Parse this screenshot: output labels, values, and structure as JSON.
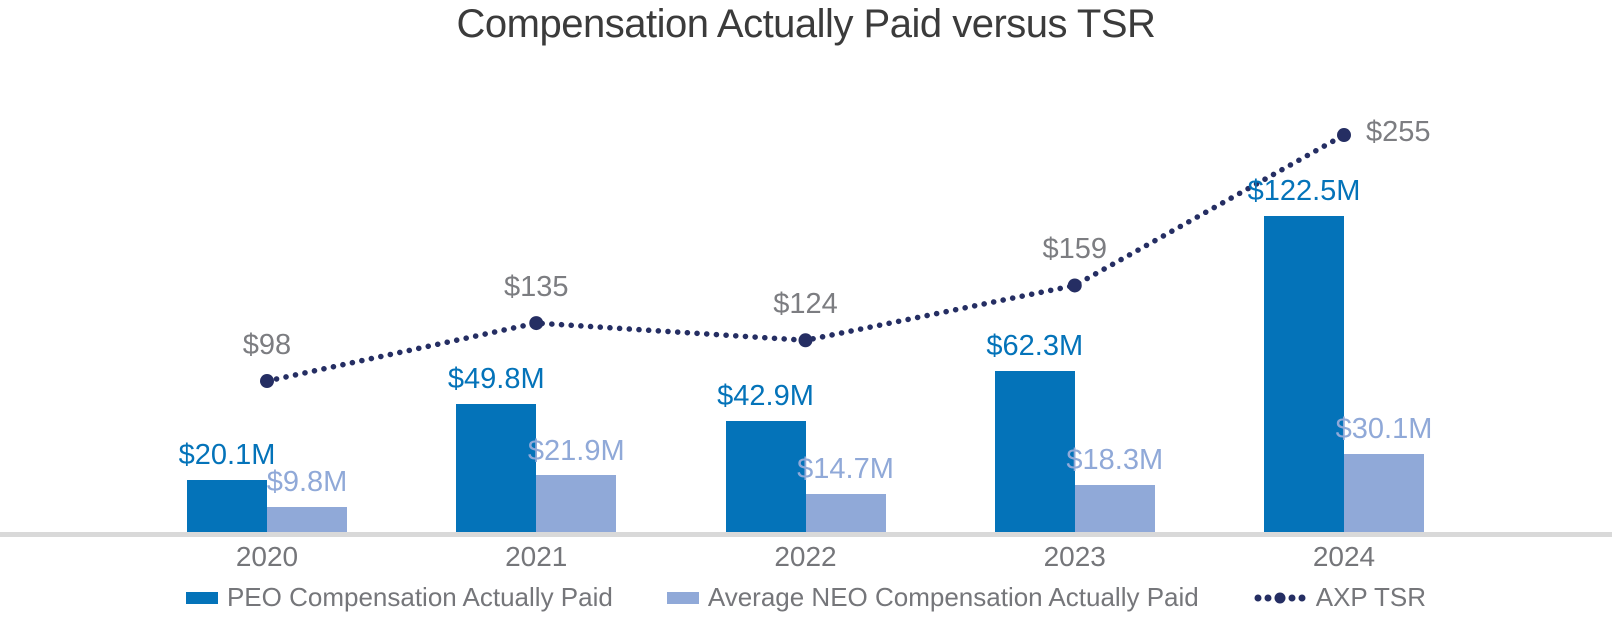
{
  "title": "Compensation Actually Paid versus TSR",
  "chart_data": {
    "type": "bar",
    "subtype": "grouped bars with secondary dotted line series",
    "categories": [
      "2020",
      "2021",
      "2022",
      "2023",
      "2024"
    ],
    "series": [
      {
        "name": "PEO Compensation Actually Paid",
        "type": "bar",
        "color": "#0473b9",
        "values": [
          20.1,
          49.8,
          42.9,
          62.3,
          122.5
        ],
        "labels": [
          "$20.1M",
          "$49.8M",
          "$42.9M",
          "$62.3M",
          "$122.5M"
        ]
      },
      {
        "name": "Average NEO Compensation Actually Paid",
        "type": "bar",
        "color": "#90a9d8",
        "values": [
          9.8,
          21.9,
          14.7,
          18.3,
          30.1
        ],
        "labels": [
          "$9.8M",
          "$21.9M",
          "$14.7M",
          "$18.3M",
          "$30.1M"
        ]
      },
      {
        "name": "AXP TSR",
        "type": "dotted-line",
        "color": "#252e63",
        "values": [
          98,
          135,
          124,
          159,
          255
        ],
        "labels": [
          "$98",
          "$135",
          "$124",
          "$159",
          "$255"
        ]
      }
    ],
    "ylabel": "",
    "xlabel": "",
    "ylim_bars": [
      0,
      135
    ],
    "ylim_tsr": [
      0,
      280
    ],
    "grid": false,
    "legend_position": "bottom",
    "colors": {
      "axis_line": "#d9d9d9",
      "title_text": "#3b3b3b",
      "gray_text": "#75767a",
      "tsr_label_text": "#7c7d81"
    }
  }
}
